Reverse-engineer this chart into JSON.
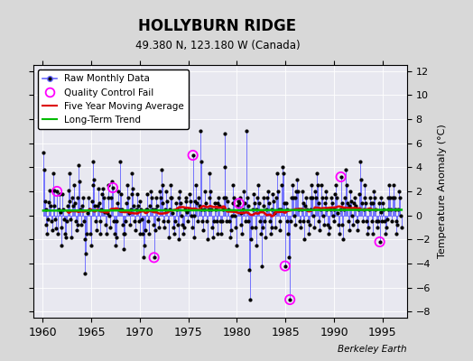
{
  "title": "HOLLYBURN RIDGE",
  "subtitle": "49.380 N, 123.180 W (Canada)",
  "ylabel": "Temperature Anomaly (°C)",
  "watermark": "Berkeley Earth",
  "xlim": [
    1959.0,
    1997.5
  ],
  "ylim": [
    -8.5,
    12.5
  ],
  "yticks": [
    -8,
    -6,
    -4,
    -2,
    0,
    2,
    4,
    6,
    8,
    10,
    12
  ],
  "xticks": [
    1960,
    1965,
    1970,
    1975,
    1980,
    1985,
    1990,
    1995
  ],
  "bg_color": "#d8d8d8",
  "plot_bg_color": "#e8e8f0",
  "line_color": "#6666ff",
  "marker_color": "#000000",
  "ma_color": "#dd0000",
  "trend_color": "#00bb00",
  "qc_color": "#ff00ff",
  "seed": 42,
  "anomaly_data": [
    5.2,
    3.8,
    1.2,
    0.5,
    -0.8,
    -1.5,
    -0.3,
    1.1,
    2.1,
    0.8,
    -0.5,
    -1.2,
    3.5,
    2.1,
    0.8,
    -0.3,
    -1.1,
    -2.0,
    -1.5,
    0.5,
    1.8,
    0.3,
    -1.0,
    -2.5,
    1.8,
    0.5,
    -0.3,
    -1.5,
    -1.8,
    -0.5,
    0.8,
    2.1,
    3.5,
    1.2,
    -0.3,
    -1.8,
    1.5,
    0.8,
    2.5,
    1.0,
    -0.5,
    -1.2,
    -0.8,
    1.5,
    4.2,
    2.8,
    0.5,
    -0.8,
    0.8,
    1.5,
    -0.5,
    -2.0,
    -4.8,
    -3.2,
    -1.5,
    0.2,
    1.5,
    0.5,
    -1.5,
    -2.5,
    1.2,
    2.5,
    4.5,
    3.0,
    0.8,
    -0.5,
    -1.2,
    0.8,
    2.2,
    1.0,
    -0.5,
    -1.5,
    0.5,
    1.8,
    2.2,
    1.5,
    0.3,
    -0.8,
    -1.5,
    0.2,
    2.5,
    1.5,
    0.0,
    -1.0,
    1.5,
    2.8,
    1.0,
    -0.5,
    -1.5,
    -2.5,
    -1.8,
    -0.5,
    1.0,
    2.0,
    0.5,
    -1.5,
    1.8,
    0.5,
    -0.8,
    -1.5,
    -2.8,
    -1.5,
    -0.5,
    1.0,
    2.5,
    1.5,
    0.2,
    -0.8,
    0.5,
    1.8,
    3.5,
    2.2,
    0.8,
    -0.5,
    -1.2,
    0.5,
    1.8,
    0.8,
    -0.5,
    -1.5,
    1.2,
    0.5,
    -0.3,
    -1.5,
    -3.5,
    -2.5,
    -1.2,
    0.5,
    1.8,
    0.5,
    -0.5,
    -1.5,
    0.8,
    2.0,
    1.5,
    0.5,
    -0.8,
    -1.8,
    -1.2,
    0.5,
    1.5,
    0.8,
    -0.3,
    -1.0,
    2.0,
    1.5,
    3.8,
    2.5,
    1.0,
    -0.5,
    -1.0,
    0.5,
    2.0,
    1.2,
    -0.5,
    -1.8,
    0.5,
    1.5,
    2.5,
    1.5,
    0.2,
    -1.0,
    -1.5,
    -0.5,
    1.0,
    0.5,
    -0.8,
    -2.0,
    1.5,
    2.0,
    1.0,
    0.0,
    -0.8,
    -1.5,
    -1.0,
    0.5,
    1.5,
    1.2,
    0.3,
    -0.5,
    0.5,
    1.8,
    1.2,
    0.0,
    -1.0,
    -2.5,
    -1.8,
    0.0,
    1.2,
    2.5,
    1.0,
    -0.5,
    1.5,
    0.8,
    7.0,
    4.5,
    0.5,
    -0.5,
    -1.2,
    0.5,
    2.0,
    1.0,
    -0.5,
    -2.0,
    0.5,
    1.5,
    3.5,
    2.0,
    0.5,
    -1.0,
    -1.8,
    -0.5,
    1.0,
    0.5,
    -0.5,
    -1.5,
    1.0,
    1.5,
    0.8,
    -0.5,
    -1.5,
    -0.5,
    0.5,
    1.5,
    6.8,
    4.0,
    1.5,
    -0.5,
    1.2,
    0.5,
    -0.5,
    -1.8,
    -1.2,
    0.0,
    1.0,
    2.5,
    1.5,
    0.0,
    -1.0,
    -2.5,
    0.8,
    1.2,
    2.5,
    1.5,
    0.2,
    -0.8,
    -1.5,
    0.5,
    2.0,
    1.0,
    -0.5,
    -1.5,
    1.5,
    0.8,
    -0.5,
    -4.5,
    -7.0,
    -2.0,
    -1.0,
    0.5,
    1.8,
    1.0,
    -1.0,
    -2.5,
    0.5,
    1.5,
    2.5,
    1.0,
    -0.5,
    -1.5,
    -4.2,
    -1.0,
    1.5,
    0.8,
    -0.5,
    -1.8,
    0.5,
    1.5,
    2.0,
    1.0,
    -0.5,
    -1.5,
    -1.0,
    0.5,
    1.8,
    1.2,
    0.2,
    -1.0,
    1.5,
    3.5,
    2.0,
    0.5,
    -0.5,
    -1.2,
    0.5,
    2.5,
    4.0,
    3.5,
    1.0,
    -0.5,
    1.0,
    0.5,
    -0.5,
    -1.5,
    -3.5,
    -1.0,
    -0.5,
    1.5,
    2.5,
    1.5,
    0.0,
    -0.8,
    1.5,
    2.0,
    3.0,
    2.0,
    0.5,
    -0.5,
    -1.0,
    0.5,
    2.0,
    1.0,
    -0.5,
    -2.0,
    0.8,
    1.5,
    0.5,
    -0.5,
    -1.5,
    -0.8,
    0.5,
    1.5,
    2.5,
    1.5,
    0.0,
    -1.0,
    2.0,
    1.5,
    3.5,
    2.5,
    1.0,
    -0.5,
    -1.2,
    0.5,
    2.5,
    1.5,
    0.0,
    -0.8,
    1.0,
    2.0,
    1.5,
    0.5,
    -0.8,
    -1.5,
    -1.0,
    0.5,
    1.5,
    1.0,
    0.0,
    -0.5,
    0.5,
    1.8,
    2.5,
    1.5,
    0.2,
    -0.8,
    -1.5,
    0.5,
    2.0,
    1.0,
    -0.8,
    -2.0,
    0.5,
    1.5,
    3.8,
    2.5,
    1.0,
    -0.5,
    -1.2,
    0.8,
    2.0,
    1.2,
    0.0,
    -0.8,
    1.0,
    1.5,
    0.8,
    -0.5,
    -1.2,
    -0.5,
    0.5,
    1.8,
    4.5,
    3.0,
    1.0,
    -0.5,
    0.5,
    1.5,
    2.5,
    1.0,
    -0.5,
    -1.5,
    -1.0,
    0.5,
    1.5,
    1.0,
    -0.5,
    -1.5,
    1.0,
    2.0,
    1.5,
    0.5,
    -0.5,
    -1.0,
    -0.5,
    1.0,
    2.5,
    1.5,
    0.3,
    -0.5,
    1.0,
    0.5,
    -0.5,
    -1.5,
    -1.0,
    -0.3,
    0.5,
    1.5,
    2.5,
    1.5,
    0.5,
    -0.5,
    1.5,
    2.5,
    1.5,
    0.5,
    -0.5,
    -1.5,
    -0.8,
    0.5,
    2.0,
    1.5,
    0.0,
    -1.0
  ],
  "qc_times": [
    1961.58,
    1967.25,
    1971.5,
    1975.58,
    1980.25,
    1984.92,
    1985.42,
    1990.75,
    1991.08,
    1994.75
  ],
  "qc_values": [
    2.1,
    2.0,
    -3.5,
    5.0,
    1.0,
    -4.2,
    -7.0,
    3.2,
    1.5,
    -2.2
  ]
}
